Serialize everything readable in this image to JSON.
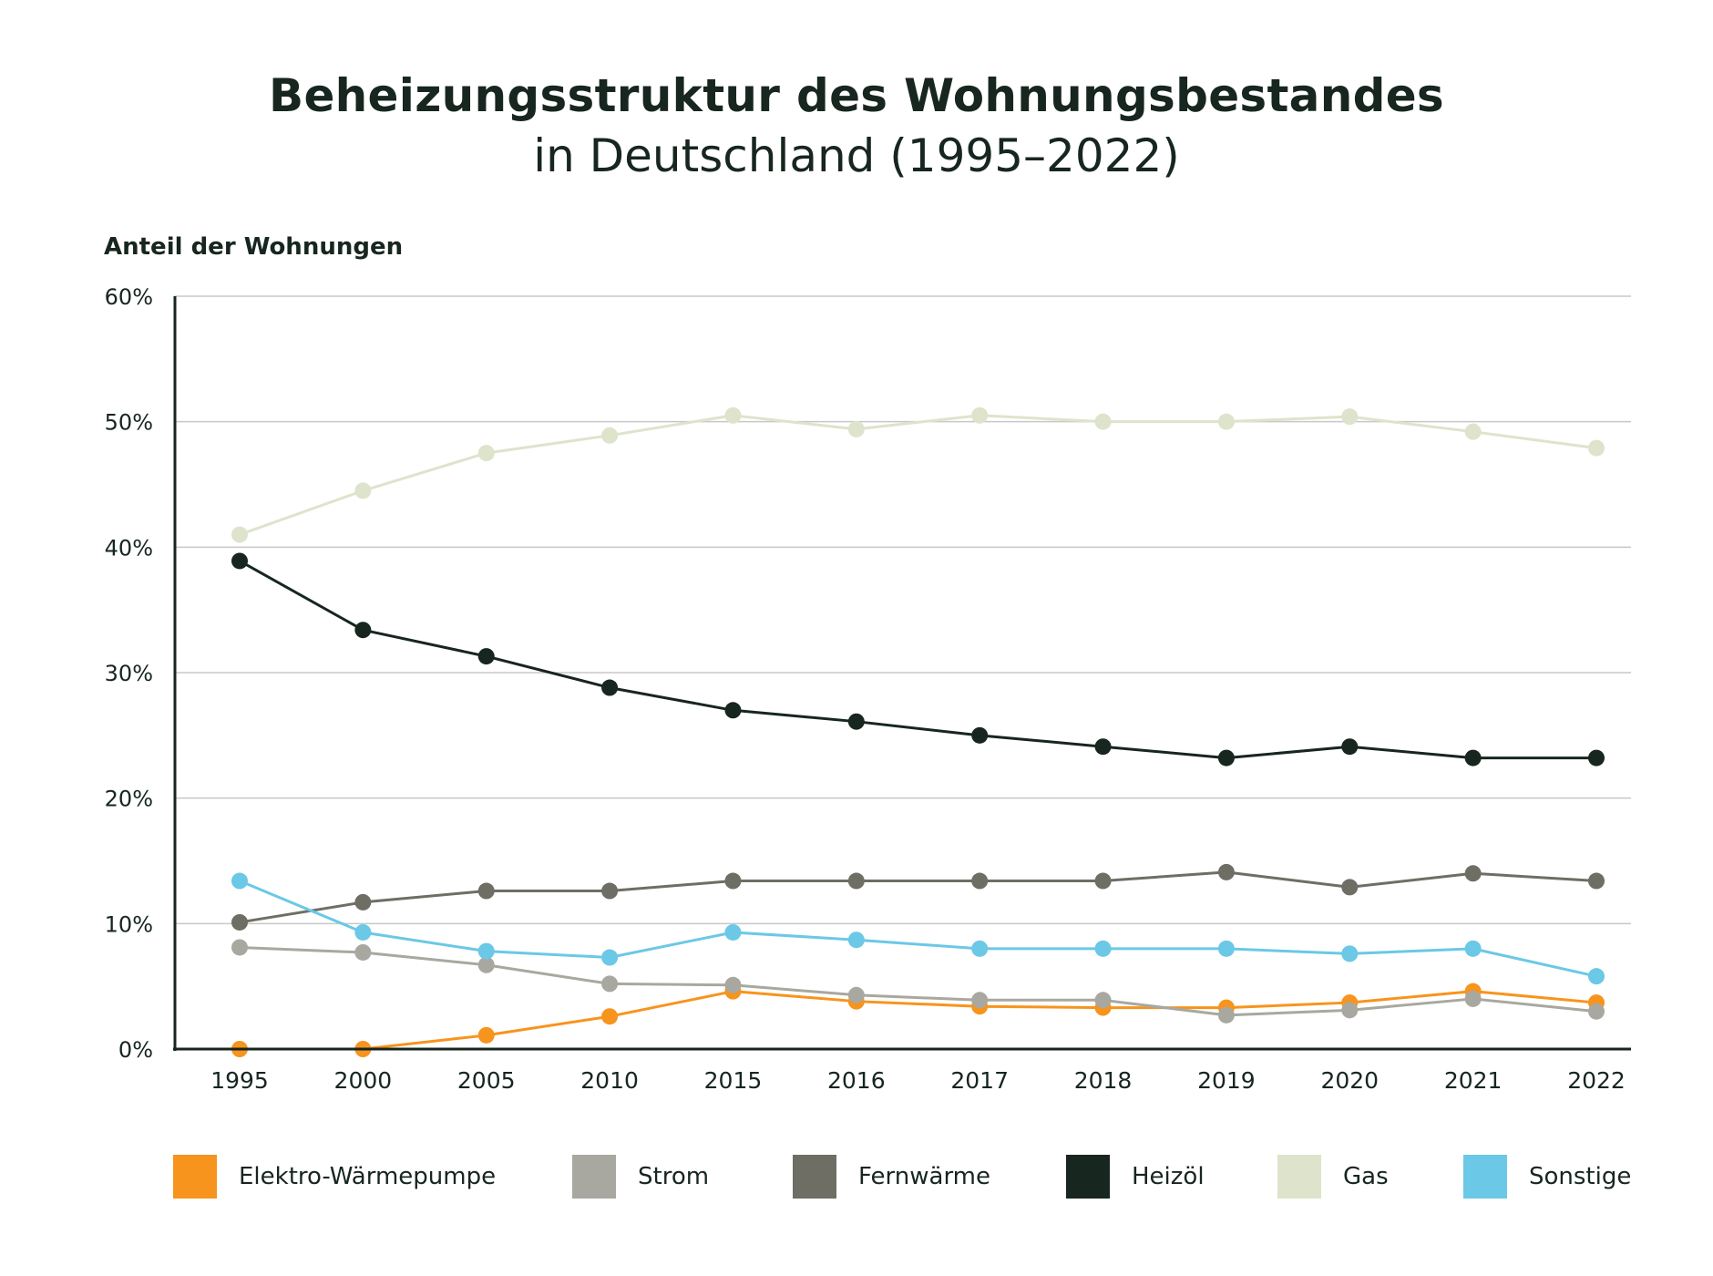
{
  "title": "Beheizungsstruktur des Wohnungsbestandes",
  "subtitle": "in Deutschland (1995–2022)",
  "colors": {
    "text": "#17261f",
    "grid": "#c8c8c8",
    "axis": "#17261f"
  },
  "chart_data": {
    "type": "line",
    "title": "Beheizungsstruktur des Wohnungsbestandes in Deutschland (1995–2022)",
    "ylabel": "Anteil der Wohnungen",
    "xlabel": "",
    "x": [
      "1995",
      "2000",
      "2005",
      "2010",
      "2015",
      "2016",
      "2017",
      "2018",
      "2019",
      "2020",
      "2021",
      "2022"
    ],
    "yticks": [
      "0%",
      "10%",
      "20%",
      "30%",
      "40%",
      "50%",
      "60%"
    ],
    "ylim": [
      0,
      60
    ],
    "grid": true,
    "legend": "bottom",
    "series": [
      {
        "name": "Elektro-Wärmepumpe",
        "color": "#f7941d",
        "values": [
          0,
          0,
          1.1,
          2.6,
          4.6,
          3.8,
          3.4,
          3.3,
          3.3,
          3.7,
          4.6,
          3.7
        ]
      },
      {
        "name": "Strom",
        "color": "#a8a8a0",
        "values": [
          8.1,
          7.7,
          6.7,
          5.2,
          5.1,
          4.3,
          3.9,
          3.9,
          2.7,
          3.1,
          4.0,
          3.0
        ]
      },
      {
        "name": "Fernwärme",
        "color": "#6e6e64",
        "values": [
          10.1,
          11.7,
          12.6,
          12.6,
          13.4,
          13.4,
          13.4,
          13.4,
          14.1,
          12.9,
          14.0,
          13.4
        ]
      },
      {
        "name": "Heizöl",
        "color": "#17261f",
        "values": [
          38.9,
          33.4,
          31.3,
          28.8,
          27.0,
          26.1,
          25.0,
          24.1,
          23.2,
          24.1,
          23.2,
          23.2
        ]
      },
      {
        "name": "Gas",
        "color": "#dde4cb",
        "values": [
          41.0,
          44.5,
          47.5,
          48.9,
          50.5,
          49.4,
          50.5,
          50.0,
          50.0,
          50.4,
          49.2,
          47.9
        ]
      },
      {
        "name": "Sonstige",
        "color": "#6bc8e6",
        "values": [
          13.4,
          9.3,
          7.8,
          7.3,
          9.3,
          8.7,
          8.0,
          8.0,
          8.0,
          7.6,
          8.0,
          5.8
        ]
      }
    ]
  }
}
